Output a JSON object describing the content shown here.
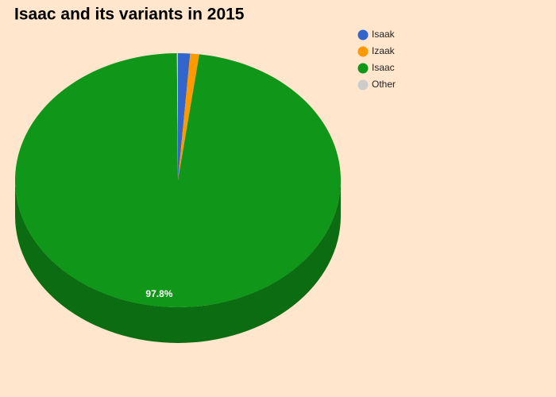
{
  "chart_data": {
    "type": "pie",
    "title": "Isaac and its variants in 2015",
    "categories": [
      "Isaak",
      "Izaak",
      "Isaac",
      "Other"
    ],
    "values": [
      1.2,
      0.9,
      97.8,
      0.1
    ],
    "value_labels": [
      null,
      null,
      "97.8%",
      null
    ],
    "colors": [
      "#3366cc",
      "#ff9900",
      "#109618",
      "#cccccc"
    ],
    "three_d": true,
    "legend": "right"
  }
}
